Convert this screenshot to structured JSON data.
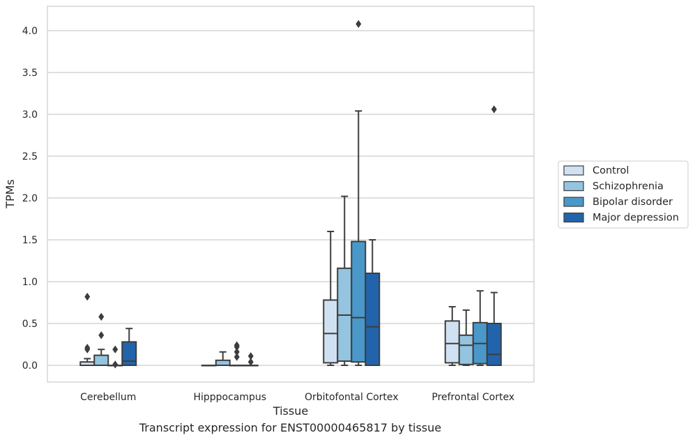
{
  "caption": "Transcript expression for ENST00000465817 by tissue",
  "chart_data": {
    "type": "boxplot",
    "xlabel": "Tissue",
    "ylabel": "TPMs",
    "ylim": [
      -0.2,
      4.3
    ],
    "yticks": [
      0.0,
      0.5,
      1.0,
      1.5,
      2.0,
      2.5,
      3.0,
      3.5,
      4.0
    ],
    "ytick_labels": [
      "0.0",
      "0.5",
      "1.0",
      "1.5",
      "2.0",
      "2.5",
      "3.0",
      "3.5",
      "4.0"
    ],
    "grid": true,
    "legend_position": "right",
    "categories": [
      "Cerebellum",
      "Hipppocampus",
      "Orbitofontal Cortex",
      "Prefrontal Cortex"
    ],
    "series": [
      {
        "name": "Control",
        "color": "#d0e1f2",
        "boxes": [
          {
            "min": 0.0,
            "q1": 0.0,
            "median": 0.0,
            "q3": 0.04,
            "max": 0.08,
            "outliers": [
              0.82,
              0.21,
              0.19
            ]
          },
          {
            "min": 0.0,
            "q1": 0.0,
            "median": 0.0,
            "q3": 0.0,
            "max": 0.0,
            "outliers": []
          },
          {
            "min": 0.0,
            "q1": 0.03,
            "median": 0.38,
            "q3": 0.78,
            "max": 1.6,
            "outliers": []
          },
          {
            "min": 0.0,
            "q1": 0.03,
            "median": 0.26,
            "q3": 0.53,
            "max": 0.7,
            "outliers": []
          }
        ]
      },
      {
        "name": "Schizophrenia",
        "color": "#94c4df",
        "boxes": [
          {
            "min": 0.0,
            "q1": 0.0,
            "median": 0.0,
            "q3": 0.12,
            "max": 0.19,
            "outliers": [
              0.58,
              0.36
            ]
          },
          {
            "min": 0.0,
            "q1": 0.0,
            "median": 0.0,
            "q3": 0.06,
            "max": 0.16,
            "outliers": []
          },
          {
            "min": 0.0,
            "q1": 0.05,
            "median": 0.6,
            "q3": 1.16,
            "max": 2.02,
            "outliers": []
          },
          {
            "min": 0.0,
            "q1": 0.01,
            "median": 0.24,
            "q3": 0.36,
            "max": 0.66,
            "outliers": []
          }
        ]
      },
      {
        "name": "Bipolar disorder",
        "color": "#4a98c9",
        "boxes": [
          {
            "min": 0.0,
            "q1": 0.0,
            "median": 0.0,
            "q3": 0.0,
            "max": 0.0,
            "outliers": [
              0.19,
              0.01
            ]
          },
          {
            "min": 0.0,
            "q1": 0.0,
            "median": 0.0,
            "q3": 0.0,
            "max": 0.0,
            "outliers": [
              0.24,
              0.22,
              0.1,
              0.16
            ]
          },
          {
            "min": 0.0,
            "q1": 0.04,
            "median": 0.57,
            "q3": 1.48,
            "max": 3.04,
            "outliers": [
              4.08
            ]
          },
          {
            "min": 0.0,
            "q1": 0.02,
            "median": 0.26,
            "q3": 0.51,
            "max": 0.89,
            "outliers": []
          }
        ]
      },
      {
        "name": "Major depression",
        "color": "#2164ab",
        "boxes": [
          {
            "min": 0.0,
            "q1": 0.0,
            "median": 0.05,
            "q3": 0.28,
            "max": 0.44,
            "outliers": []
          },
          {
            "min": 0.0,
            "q1": 0.0,
            "median": 0.0,
            "q3": 0.0,
            "max": 0.0,
            "outliers": [
              0.11,
              0.04
            ]
          },
          {
            "min": 0.0,
            "q1": 0.0,
            "median": 0.46,
            "q3": 1.1,
            "max": 1.5,
            "outliers": []
          },
          {
            "min": 0.0,
            "q1": 0.0,
            "median": 0.13,
            "q3": 0.5,
            "max": 0.87,
            "outliers": [
              3.06
            ]
          }
        ]
      }
    ]
  }
}
